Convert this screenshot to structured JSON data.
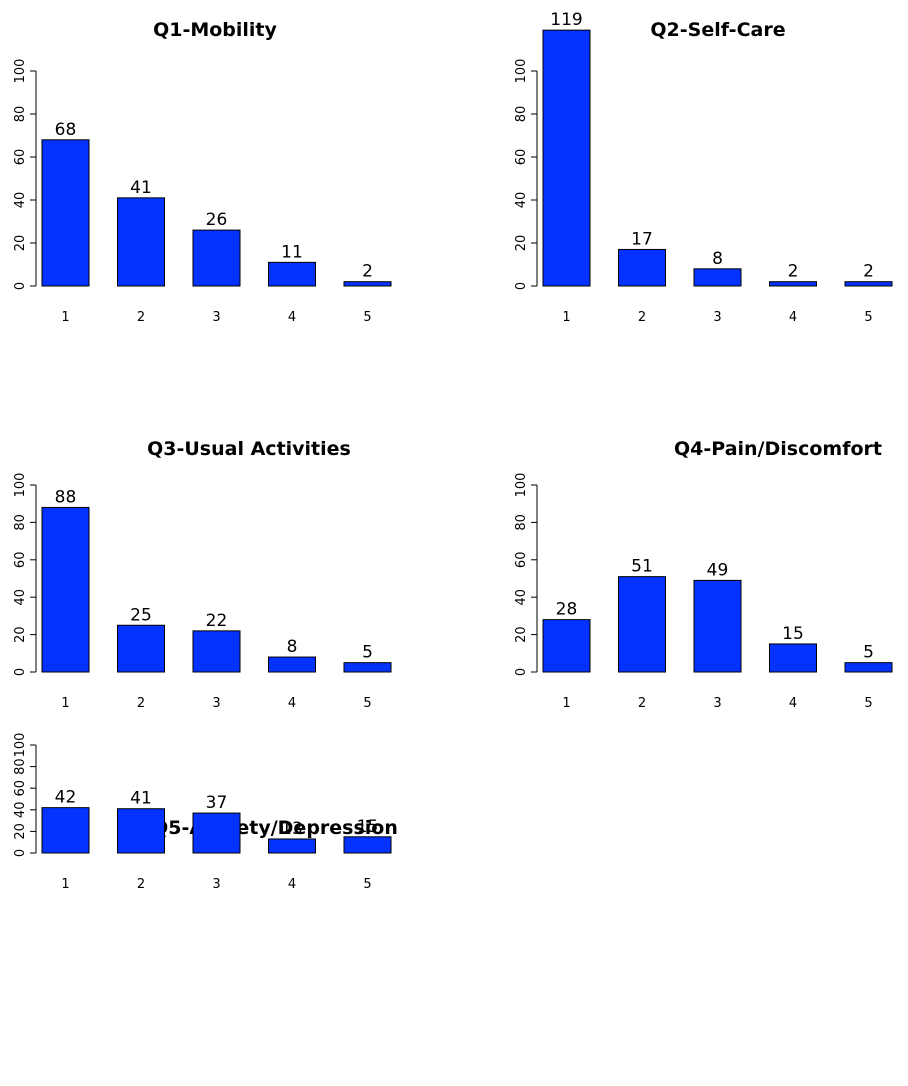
{
  "bar_color": "#0433FF",
  "chart_data": [
    {
      "type": "bar",
      "title": "Q1-Mobility",
      "categories": [
        "1",
        "2",
        "3",
        "4",
        "5"
      ],
      "values": [
        68,
        41,
        26,
        11,
        2
      ],
      "data_labels": [
        "68",
        "41",
        "26",
        "11",
        "2"
      ],
      "ylim": [
        0,
        100
      ],
      "yticks": [
        0,
        20,
        40,
        60,
        80,
        100
      ],
      "ytick_labels": [
        "0",
        "20",
        "40",
        "60",
        "80",
        "100"
      ],
      "xlabel": "",
      "ylabel": "",
      "grid": false
    },
    {
      "type": "bar",
      "title": "Q2-Self-Care",
      "categories": [
        "1",
        "2",
        "3",
        "4",
        "5"
      ],
      "values": [
        119,
        17,
        8,
        2,
        2
      ],
      "data_labels": [
        "119",
        "17",
        "8",
        "2",
        "2"
      ],
      "ylim": [
        0,
        100
      ],
      "yticks": [
        0,
        20,
        40,
        60,
        80,
        100
      ],
      "ytick_labels": [
        "0",
        "20",
        "40",
        "60",
        "80",
        "100"
      ],
      "xlabel": "",
      "ylabel": "",
      "grid": false
    },
    {
      "type": "bar",
      "title": "Q3-Usual Activities",
      "categories": [
        "1",
        "2",
        "3",
        "4",
        "5"
      ],
      "values": [
        88,
        25,
        22,
        8,
        5
      ],
      "data_labels": [
        "88",
        "25",
        "22",
        "8",
        "5"
      ],
      "ylim": [
        0,
        100
      ],
      "yticks": [
        0,
        20,
        40,
        60,
        80,
        100
      ],
      "ytick_labels": [
        "0",
        "20",
        "40",
        "60",
        "80",
        "100"
      ],
      "xlabel": "",
      "ylabel": "",
      "grid": false
    },
    {
      "type": "bar",
      "title": "Q4-Pain/Discomfort",
      "categories": [
        "1",
        "2",
        "3",
        "4",
        "5"
      ],
      "values": [
        28,
        51,
        49,
        15,
        5
      ],
      "data_labels": [
        "28",
        "51",
        "49",
        "15",
        "5"
      ],
      "ylim": [
        0,
        100
      ],
      "yticks": [
        0,
        20,
        40,
        60,
        80,
        100
      ],
      "ytick_labels": [
        "0",
        "20",
        "40",
        "60",
        "80",
        "100"
      ],
      "xlabel": "",
      "ylabel": "",
      "grid": false
    },
    {
      "type": "bar",
      "title": "Q5-Anxiety/Depression",
      "categories": [
        "1",
        "2",
        "3",
        "4",
        "5"
      ],
      "values": [
        42,
        41,
        37,
        13,
        15
      ],
      "data_labels": [
        "42",
        "41",
        "37",
        "13",
        "15"
      ],
      "ylim": [
        0,
        100
      ],
      "yticks": [
        0,
        20,
        40,
        60,
        80,
        100
      ],
      "ytick_labels": [
        "0",
        "20",
        "40",
        "60",
        "80",
        "100"
      ],
      "xlabel": "",
      "ylabel": "",
      "grid": false
    }
  ]
}
